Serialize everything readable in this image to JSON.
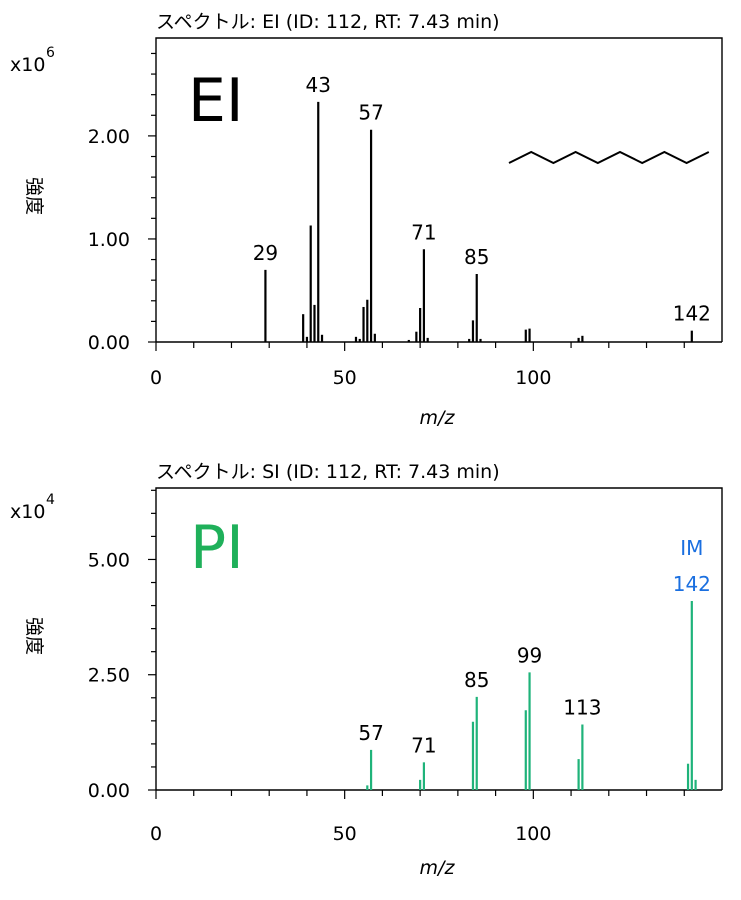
{
  "chart_data": [
    {
      "type": "bar",
      "title": "スペクトル: EI (ID: 112, RT: 7.43 min)",
      "label": "EI",
      "xlabel": "m/z",
      "ylabel": "強度",
      "scale_label": "x10",
      "scale_exp": "6",
      "xlim": [
        0,
        150
      ],
      "ylim": [
        0,
        2.95
      ],
      "xticks": [
        "0",
        "50",
        "100"
      ],
      "yticks": [
        "0.00",
        "1.00",
        "2.00"
      ],
      "color": "#000000",
      "label_color": "#000000",
      "structure": "decane-skeletal",
      "peaks": [
        {
          "mz": 29,
          "y": 0.7,
          "label": "29"
        },
        {
          "mz": 39,
          "y": 0.27
        },
        {
          "mz": 40,
          "y": 0.05
        },
        {
          "mz": 41,
          "y": 1.13
        },
        {
          "mz": 42,
          "y": 0.36
        },
        {
          "mz": 43,
          "y": 2.33,
          "label": "43"
        },
        {
          "mz": 44,
          "y": 0.07
        },
        {
          "mz": 53,
          "y": 0.05
        },
        {
          "mz": 54,
          "y": 0.03
        },
        {
          "mz": 55,
          "y": 0.34
        },
        {
          "mz": 56,
          "y": 0.41
        },
        {
          "mz": 57,
          "y": 2.06,
          "label": "57"
        },
        {
          "mz": 58,
          "y": 0.08
        },
        {
          "mz": 67,
          "y": 0.02
        },
        {
          "mz": 69,
          "y": 0.1
        },
        {
          "mz": 70,
          "y": 0.33
        },
        {
          "mz": 71,
          "y": 0.9,
          "label": "71"
        },
        {
          "mz": 72,
          "y": 0.04
        },
        {
          "mz": 83,
          "y": 0.03
        },
        {
          "mz": 84,
          "y": 0.21
        },
        {
          "mz": 85,
          "y": 0.66,
          "label": "85"
        },
        {
          "mz": 86,
          "y": 0.03
        },
        {
          "mz": 98,
          "y": 0.12
        },
        {
          "mz": 99,
          "y": 0.13
        },
        {
          "mz": 112,
          "y": 0.04
        },
        {
          "mz": 113,
          "y": 0.06
        },
        {
          "mz": 142,
          "y": 0.11,
          "label": "142"
        }
      ]
    },
    {
      "type": "bar",
      "title": "スペクトル: SI (ID: 112, RT: 7.43 min)",
      "label": "PI",
      "xlabel": "m/z",
      "ylabel": "強度",
      "scale_label": "x10",
      "scale_exp": "4",
      "xlim": [
        0,
        150
      ],
      "ylim": [
        0,
        6.55
      ],
      "xticks": [
        "0",
        "50",
        "100"
      ],
      "yticks": [
        "0.00",
        "2.50",
        "5.00"
      ],
      "color": "#1fb37a",
      "label_color": "#1fb05a",
      "annotation": {
        "text": "IM",
        "color": "#1a6fe0",
        "mz": 142
      },
      "peaks": [
        {
          "mz": 56,
          "y": 0.1
        },
        {
          "mz": 57,
          "y": 0.87,
          "label": "57"
        },
        {
          "mz": 70,
          "y": 0.22
        },
        {
          "mz": 71,
          "y": 0.6,
          "label": "71"
        },
        {
          "mz": 84,
          "y": 1.48
        },
        {
          "mz": 85,
          "y": 2.02,
          "label": "85"
        },
        {
          "mz": 98,
          "y": 1.73
        },
        {
          "mz": 99,
          "y": 2.55,
          "label": "99"
        },
        {
          "mz": 112,
          "y": 0.67
        },
        {
          "mz": 113,
          "y": 1.42,
          "label": "113"
        },
        {
          "mz": 141,
          "y": 0.57
        },
        {
          "mz": 142,
          "y": 4.1,
          "label": "142",
          "label_color": "#1a6fe0"
        },
        {
          "mz": 143,
          "y": 0.22
        }
      ]
    }
  ]
}
